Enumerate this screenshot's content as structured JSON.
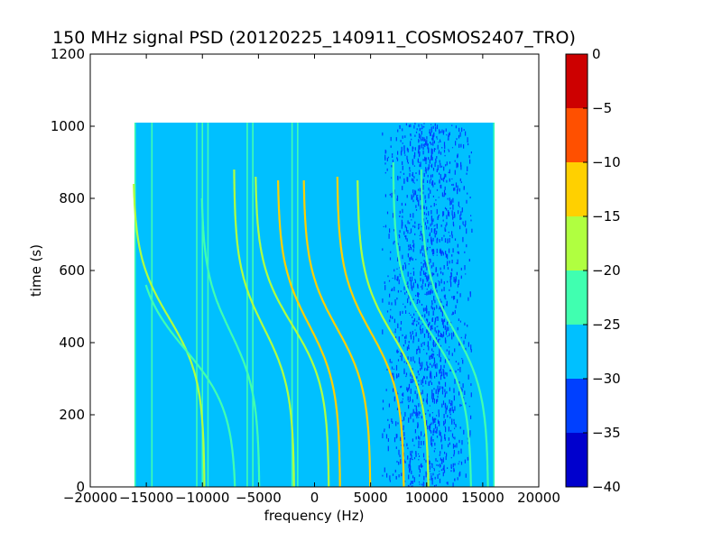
{
  "chart_data": {
    "type": "heatmap",
    "title": "150 MHz signal PSD (20120225_140911_COSMOS2407_TRO)",
    "xlabel": "frequency (Hz)",
    "ylabel": "time (s)",
    "xlim": [
      -20000,
      20000
    ],
    "ylim": [
      0,
      1200
    ],
    "xticks": [
      -20000,
      -15000,
      -10000,
      -5000,
      0,
      5000,
      10000,
      15000,
      20000
    ],
    "yticks": [
      0,
      200,
      400,
      600,
      800,
      1000,
      1200
    ],
    "data_extent": {
      "x": [
        -16000,
        16000
      ],
      "y": [
        0,
        1010
      ]
    },
    "background_level": -28,
    "noisy_band": {
      "x": [
        6000,
        14000
      ],
      "level": -33
    },
    "colorbar": {
      "levels": [
        -40,
        -35,
        -30,
        -25,
        -20,
        -15,
        -10,
        -5,
        0
      ],
      "ticks": [
        0,
        -5,
        -10,
        -15,
        -20,
        -25,
        -30,
        -35,
        -40
      ],
      "colors": [
        "#0000cd",
        "#0040ff",
        "#00c0ff",
        "#40ffb0",
        "#b0ff40",
        "#ffd000",
        "#ff5000",
        "#cd0000"
      ]
    },
    "vertical_lines": [
      {
        "x": -16000,
        "level": -24
      },
      {
        "x": -14500,
        "level": -24
      },
      {
        "x": -10500,
        "level": -22
      },
      {
        "x": -10000,
        "level": -24
      },
      {
        "x": -9500,
        "level": -22
      },
      {
        "x": -6000,
        "level": -24
      },
      {
        "x": -5500,
        "level": -24
      },
      {
        "x": -2000,
        "level": -24
      },
      {
        "x": -1500,
        "level": -22
      },
      {
        "x": 16000,
        "level": -22
      }
    ],
    "doppler_tracks": [
      {
        "name": "",
        "x_center": -13000,
        "t_center": 470,
        "half_width": 3200,
        "t_top": 840,
        "t_bottom": 0,
        "level": -20
      },
      {
        "name": "",
        "x_center": -11500,
        "t_center": 380,
        "half_width": 4500,
        "t_top": 560,
        "t_bottom": 0,
        "level": -24
      },
      {
        "name": "",
        "x_center": -7500,
        "t_center": 430,
        "half_width": 2600,
        "t_top": 800,
        "t_bottom": 0,
        "level": -22
      },
      {
        "name": "",
        "x_center": -4500,
        "t_center": 440,
        "half_width": 2700,
        "t_top": 880,
        "t_bottom": 0,
        "level": -20
      },
      {
        "name": "",
        "x_center": -2000,
        "t_center": 450,
        "half_width": 3300,
        "t_top": 860,
        "t_bottom": 0,
        "level": -18
      },
      {
        "name": "",
        "x_center": -500,
        "t_center": 450,
        "half_width": 2800,
        "t_top": 850,
        "t_bottom": 0,
        "level": -15
      },
      {
        "name": "",
        "x_center": 2000,
        "t_center": 440,
        "half_width": 3000,
        "t_top": 850,
        "t_bottom": 0,
        "level": -12
      },
      {
        "name": "",
        "x_center": 5000,
        "t_center": 430,
        "half_width": 3000,
        "t_top": 860,
        "t_bottom": 0,
        "level": -15
      },
      {
        "name": "",
        "x_center": 7000,
        "t_center": 420,
        "half_width": 3200,
        "t_top": 850,
        "t_bottom": 0,
        "level": -20
      },
      {
        "name": "",
        "x_center": 10500,
        "t_center": 420,
        "half_width": 3500,
        "t_top": 900,
        "t_bottom": 0,
        "level": -22
      },
      {
        "name": "",
        "x_center": 12500,
        "t_center": 430,
        "half_width": 3000,
        "t_top": 880,
        "t_bottom": 0,
        "level": -22
      }
    ],
    "grid": false,
    "legend": "colorbar-right"
  }
}
